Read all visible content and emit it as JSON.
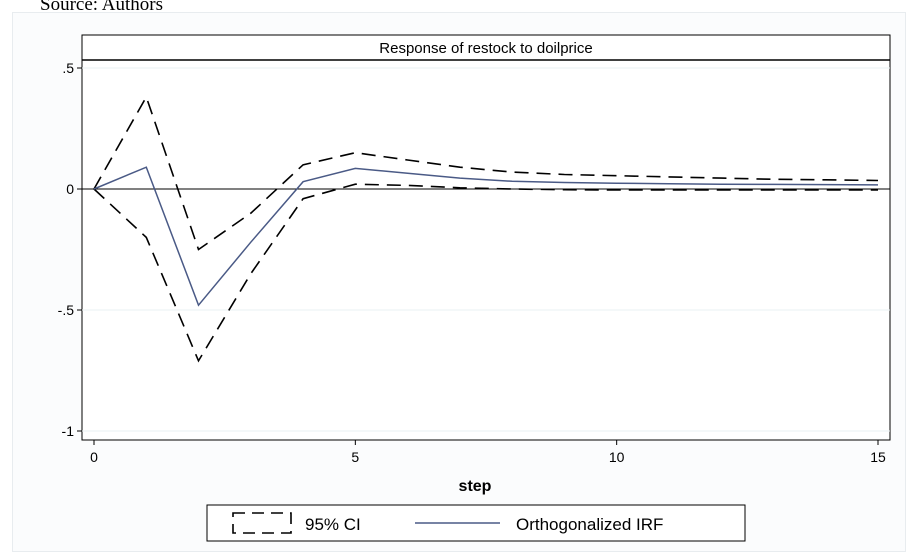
{
  "source_text": "Source: Authors",
  "chart_data": {
    "type": "line",
    "title": "Response of restock to doilprice",
    "xlabel": "step",
    "ylabel": "",
    "xlim": [
      0,
      15
    ],
    "ylim": [
      -1,
      0.55
    ],
    "x_ticks": [
      0,
      5,
      10,
      15
    ],
    "y_ticks": [
      0.5,
      0,
      -0.5,
      -1
    ],
    "x_tick_labels": [
      "0",
      "5",
      "10",
      "15"
    ],
    "y_tick_labels": [
      ".5",
      "0",
      "-.5",
      "-1"
    ],
    "x": [
      0,
      1,
      2,
      3,
      4,
      5,
      6,
      7,
      8,
      9,
      10,
      11,
      12,
      13,
      14,
      15
    ],
    "series": [
      {
        "name": "95% CI",
        "role": "upper",
        "style": "dashed",
        "values": [
          0,
          0.38,
          -0.25,
          -0.1,
          0.1,
          0.15,
          0.12,
          0.09,
          0.07,
          0.06,
          0.055,
          0.05,
          0.045,
          0.04,
          0.038,
          0.035
        ]
      },
      {
        "name": "95% CI",
        "role": "lower",
        "style": "dashed",
        "values": [
          0,
          -0.2,
          -0.71,
          -0.35,
          -0.04,
          0.02,
          0.015,
          0.005,
          0.0,
          -0.003,
          -0.004,
          -0.004,
          -0.004,
          -0.004,
          -0.004,
          -0.004
        ]
      },
      {
        "name": "Orthogonalized IRF",
        "role": "irf",
        "style": "solid",
        "values": [
          0,
          0.09,
          -0.48,
          -0.22,
          0.03,
          0.085,
          0.065,
          0.045,
          0.032,
          0.027,
          0.024,
          0.022,
          0.02,
          0.019,
          0.018,
          0.017
        ]
      }
    ],
    "zero_line": true,
    "grid": true,
    "legend": {
      "position": "bottom",
      "entries": [
        {
          "label": "95% CI",
          "style": "dashed"
        },
        {
          "label": "Orthogonalized IRF",
          "style": "solid"
        }
      ]
    },
    "colors": {
      "irf": "#4a5a86",
      "ci": "#000000",
      "grid": "#eaf0f3"
    }
  }
}
